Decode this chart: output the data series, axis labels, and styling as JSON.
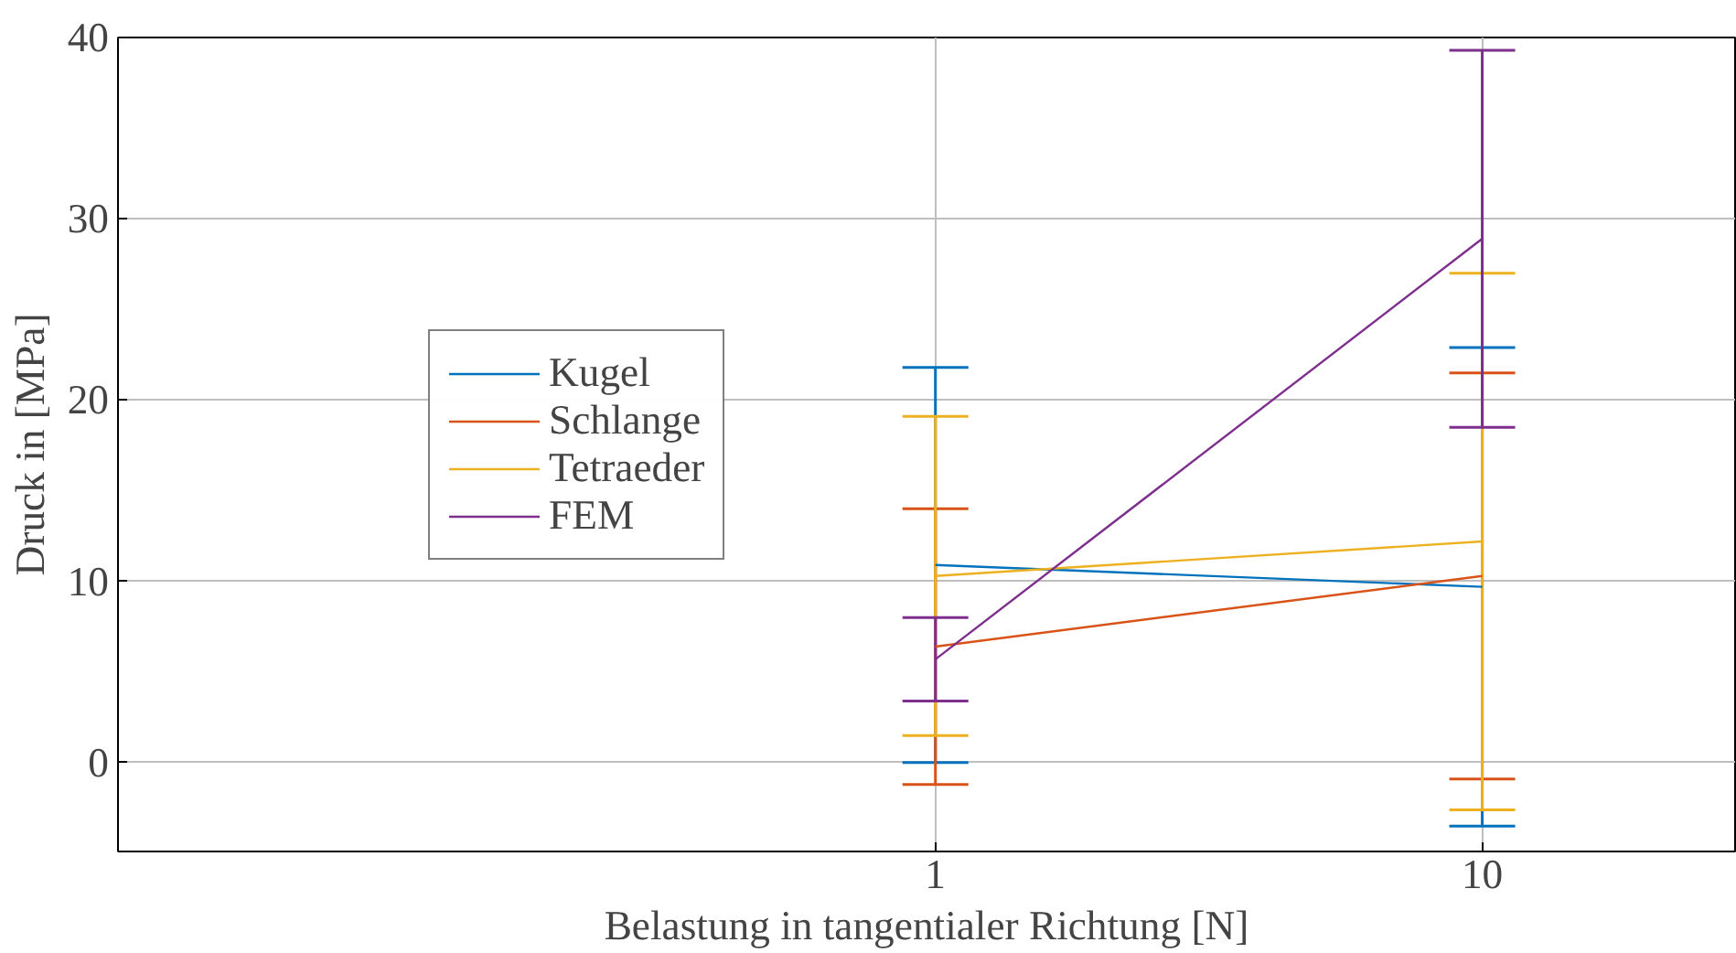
{
  "chart_data": {
    "type": "line",
    "xlabel": "Belastung in tangentialer Richtung [N]",
    "ylabel": "Druck in [MPa]",
    "x": [
      1,
      10
    ],
    "log": "x",
    "xlim": [
      0.032,
      29
    ],
    "xticks": [
      1,
      10
    ],
    "ylim": [
      -4.9,
      40
    ],
    "yticks": [
      0,
      10,
      20,
      30,
      40
    ],
    "grid": true,
    "legend": "left",
    "marker": "none",
    "line_style": "solid",
    "series": [
      {
        "name": "Kugel",
        "color": "#0072bd",
        "values": [
          10.9,
          9.7
        ],
        "errors": [
          10.9,
          13.2
        ]
      },
      {
        "name": "Schlange",
        "color": "#d95319",
        "values": [
          6.4,
          10.3
        ],
        "errors": [
          7.6,
          11.2
        ]
      },
      {
        "name": "Tetraeder",
        "color": "#edb120",
        "values": [
          10.3,
          12.2
        ],
        "errors": [
          8.8,
          14.8
        ]
      },
      {
        "name": "FEM",
        "color": "#7e2f8e",
        "values": [
          5.7,
          28.9
        ],
        "errors": [
          2.3,
          10.4
        ]
      }
    ]
  }
}
